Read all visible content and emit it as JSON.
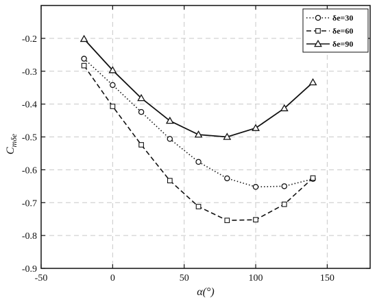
{
  "chart_data": {
    "type": "line",
    "title": "",
    "xlabel": "α(°)",
    "ylabel": "C_mδe",
    "xlim": [
      -50,
      180
    ],
    "ylim": [
      -0.9,
      -0.1
    ],
    "xticks": [
      -50,
      0,
      50,
      100,
      150
    ],
    "yticks": [
      -0.9,
      -0.8,
      -0.7,
      -0.6,
      -0.5,
      -0.4,
      -0.3,
      -0.2
    ],
    "x_tick_labels": [
      "-50",
      "0",
      "50",
      "100",
      "150"
    ],
    "y_tick_labels": [
      "-0.9",
      "-0.8",
      "-0.7",
      "-0.6",
      "-0.5",
      "-0.4",
      "-0.3",
      "-0.2"
    ],
    "grid": true,
    "legend_position": "top-right",
    "x": [
      -20,
      0,
      20,
      40,
      60,
      80,
      100,
      120,
      140
    ],
    "series": [
      {
        "name": "δe=30",
        "values": [
          -0.262,
          -0.342,
          -0.424,
          -0.506,
          -0.576,
          -0.626,
          -0.652,
          -0.65,
          -0.628
        ],
        "line_style": "dotted",
        "marker": "circle",
        "color": "#111111"
      },
      {
        "name": "δe=60",
        "values": [
          -0.283,
          -0.407,
          -0.524,
          -0.633,
          -0.712,
          -0.754,
          -0.752,
          -0.705,
          -0.625
        ],
        "line_style": "dashed",
        "marker": "square",
        "color": "#111111"
      },
      {
        "name": "δe=90",
        "values": [
          -0.202,
          -0.297,
          -0.382,
          -0.451,
          -0.493,
          -0.5,
          -0.473,
          -0.413,
          -0.334
        ],
        "line_style": "solid",
        "marker": "triangle",
        "color": "#111111"
      }
    ]
  }
}
